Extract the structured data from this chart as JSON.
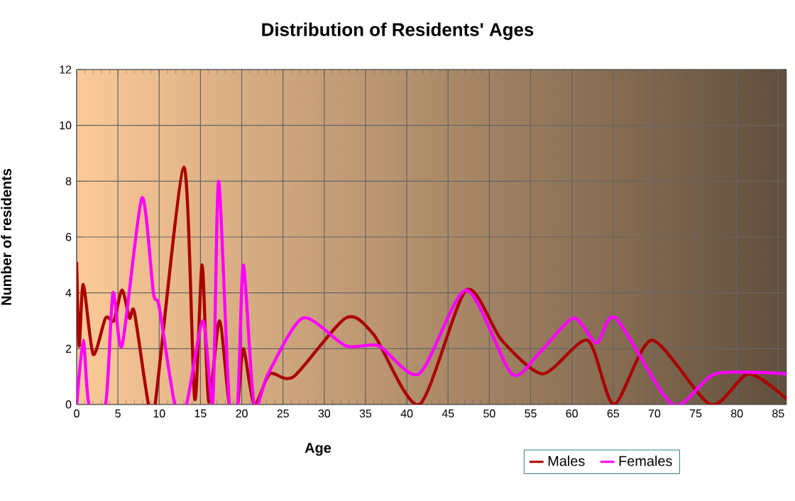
{
  "chart_data": {
    "type": "line",
    "title": "Distribution of Residents' Ages",
    "xlabel": "Age",
    "ylabel": "Number of residents",
    "xlim": [
      0,
      86
    ],
    "xticks": [
      0,
      5,
      10,
      15,
      20,
      25,
      30,
      35,
      40,
      45,
      50,
      55,
      60,
      65,
      70,
      75,
      80,
      85
    ],
    "ylim": [
      0,
      12
    ],
    "yticks": [
      0,
      2,
      4,
      6,
      8,
      10,
      12
    ],
    "grid": true,
    "legend": "bottom right",
    "marker": "none",
    "line_style": "solid",
    "series": [
      {
        "name": "Males",
        "color": "#aa0000",
        "x": [
          0,
          0.3,
          0.8,
          2,
          3.5,
          4.5,
          5.5,
          6.4,
          7,
          8.7,
          9.5,
          13,
          14.3,
          15.2,
          16,
          17.3,
          18.5,
          19.5,
          20.2,
          21.5,
          23.4,
          26.3,
          32.6,
          36,
          41.5,
          47.2,
          51.5,
          56.5,
          61.9,
          65.1,
          69.7,
          76.8,
          81.4,
          86
        ],
        "values": [
          5.1,
          2.1,
          4.3,
          1.8,
          3.1,
          3.0,
          4.1,
          3.1,
          3.3,
          0,
          0,
          8.5,
          0.2,
          5.0,
          0.1,
          3.0,
          0,
          0,
          2.0,
          0,
          1.1,
          1.0,
          3.1,
          2.5,
          0,
          4.1,
          2.3,
          1.1,
          2.3,
          0,
          2.3,
          0,
          1.1,
          0.2
        ]
      },
      {
        "name": "Females",
        "color": "#ff00ff",
        "x": [
          0,
          0.8,
          1.5,
          3.5,
          4.4,
          5.5,
          7.9,
          9.3,
          10,
          11.9,
          13.3,
          15.3,
          16.5,
          17.2,
          18.5,
          19.5,
          20.2,
          21.5,
          23.2,
          27.4,
          32.6,
          36.6,
          41.5,
          47.2,
          52.7,
          56.2,
          60.2,
          63,
          65.3,
          72.2,
          77.4,
          86
        ],
        "values": [
          0,
          2.3,
          0,
          0,
          4.0,
          2.1,
          7.4,
          4.0,
          3.5,
          0,
          0,
          3.0,
          0.1,
          8.0,
          0,
          0,
          5.0,
          0,
          1.1,
          3.1,
          2.1,
          2.1,
          1.1,
          4.1,
          1.1,
          1.9,
          3.1,
          2.2,
          3.1,
          0,
          1.1,
          1.1
        ]
      }
    ]
  }
}
